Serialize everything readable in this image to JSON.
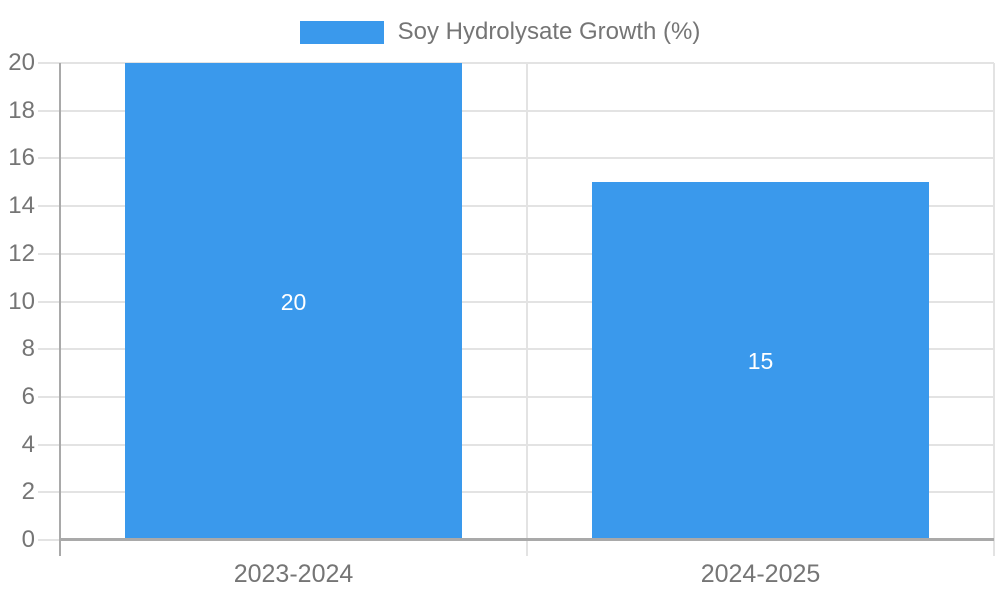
{
  "legend": {
    "label": "Soy Hydrolysate Growth (%)"
  },
  "colors": {
    "bar": "#3a99ec",
    "grid": "#e3e3e3",
    "axis": "#a9a9a9",
    "tick_text": "#757575",
    "data_label": "#ffffff"
  },
  "chart_data": {
    "type": "bar",
    "title": "",
    "xlabel": "",
    "ylabel": "",
    "categories": [
      "2023-2024",
      "2024-2025"
    ],
    "series": [
      {
        "name": "Soy Hydrolysate Growth (%)",
        "values": [
          20,
          15
        ]
      }
    ],
    "data_labels": [
      "20",
      "15"
    ],
    "ylim": [
      0,
      20
    ],
    "ytick_step": 2,
    "yticks": [
      0,
      2,
      4,
      6,
      8,
      10,
      12,
      14,
      16,
      18,
      20
    ],
    "grid": true,
    "legend_position": "top-center"
  }
}
